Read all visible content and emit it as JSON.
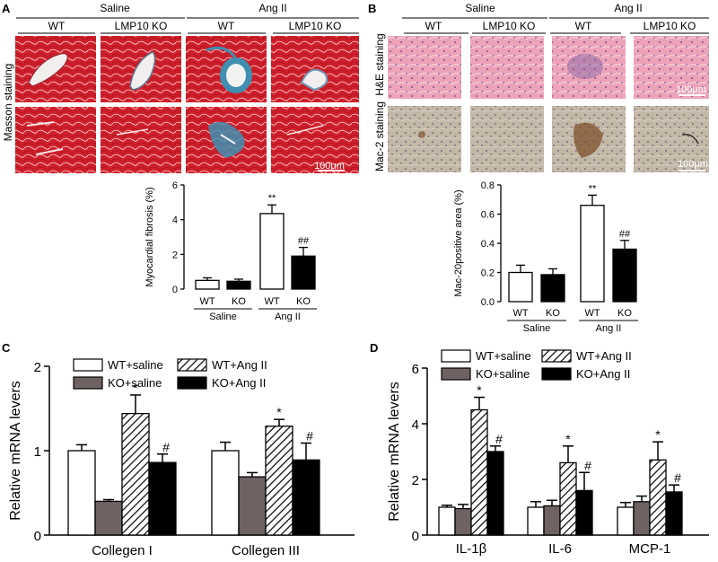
{
  "panel_labels": [
    "A",
    "B",
    "C",
    "D"
  ],
  "colors": {
    "masson_bg": "#cf1f2a",
    "masson_fiber": "#3f8fb0",
    "he_bg": "#eda2b8",
    "he_nuclei": "#5a3f8a",
    "mac2_bg": "#c3b7a6",
    "mac2_stain": "#7a4a23",
    "bar_ko_saline": "#6e6262"
  },
  "panelA": {
    "group_headers": [
      "Saline",
      "Ang II"
    ],
    "col_headers": [
      "WT",
      "LMP10 KO",
      "WT",
      "LMP10 KO"
    ],
    "row_label": "Masson staining",
    "scale_bar": "100μm"
  },
  "panelB": {
    "group_headers": [
      "Saline",
      "Ang II"
    ],
    "col_headers": [
      "WT",
      "LMP10 KO",
      "WT",
      "LMP10 KO"
    ],
    "row_labels": [
      "H&E staining",
      "Mac-2 staining"
    ],
    "scale_bars": [
      "100μm",
      "100μm"
    ]
  },
  "chart_data": [
    {
      "panel": "A",
      "type": "bar",
      "ylabel": "Myocardial fibrosis (%)",
      "ylim": [
        0,
        6
      ],
      "yticks": [
        0,
        2,
        4,
        6
      ],
      "categories": [
        "WT",
        "KO",
        "WT",
        "KO"
      ],
      "groups": [
        "Saline",
        "Ang II"
      ],
      "values": [
        0.5,
        0.45,
        4.35,
        1.9
      ],
      "errors": [
        0.15,
        0.12,
        0.5,
        0.5
      ],
      "fills": [
        "white",
        "black",
        "white",
        "black"
      ],
      "annotations": [
        "",
        "",
        "**",
        "##"
      ]
    },
    {
      "panel": "B",
      "type": "bar",
      "ylabel": "Mac-20positive area (%)",
      "ylim": [
        0,
        0.8
      ],
      "yticks": [
        "0.0",
        "0.2",
        "0.4",
        "0.6",
        "0.8"
      ],
      "categories": [
        "WT",
        "KO",
        "WT",
        "KO"
      ],
      "groups": [
        "Saline",
        "Ang II"
      ],
      "values": [
        0.2,
        0.185,
        0.66,
        0.36
      ],
      "errors": [
        0.05,
        0.04,
        0.07,
        0.06
      ],
      "fills": [
        "white",
        "black",
        "white",
        "black"
      ],
      "annotations": [
        "",
        "",
        "**",
        "##"
      ]
    },
    {
      "panel": "C",
      "type": "bar",
      "ylabel": "Relative mRNA levers",
      "ylim": [
        0,
        2
      ],
      "yticks": [
        0,
        1,
        2
      ],
      "categories": [
        "Collegen I",
        "Collegen III"
      ],
      "series": [
        {
          "name": "WT+saline",
          "values": [
            1.0,
            1.0
          ],
          "errors": [
            0.07,
            0.1
          ]
        },
        {
          "name": "KO+saline",
          "values": [
            0.4,
            0.69
          ],
          "errors": [
            0.02,
            0.05
          ]
        },
        {
          "name": "WT+Ang II",
          "values": [
            1.44,
            1.29
          ],
          "errors": [
            0.22,
            0.08
          ]
        },
        {
          "name": "KO+Ang II",
          "values": [
            0.86,
            0.89
          ],
          "errors": [
            0.1,
            0.2
          ]
        }
      ],
      "annotations": [
        [
          "",
          "",
          "*",
          "#"
        ],
        [
          "",
          "",
          "*",
          "#"
        ]
      ]
    },
    {
      "panel": "D",
      "type": "bar",
      "ylabel": "Relative mRNA levers",
      "ylim": [
        0,
        6
      ],
      "yticks": [
        0,
        2,
        4,
        6
      ],
      "categories": [
        "IL-1β",
        "IL-6",
        "MCP-1"
      ],
      "series": [
        {
          "name": "WT+saline",
          "values": [
            1.0,
            1.0,
            1.0
          ],
          "errors": [
            0.07,
            0.2,
            0.17
          ]
        },
        {
          "name": "KO+saline",
          "values": [
            0.95,
            1.05,
            1.2
          ],
          "errors": [
            0.15,
            0.2,
            0.2
          ]
        },
        {
          "name": "WT+Ang II",
          "values": [
            4.5,
            2.6,
            2.7
          ],
          "errors": [
            0.45,
            0.6,
            0.65
          ]
        },
        {
          "name": "KO+Ang II",
          "values": [
            3.0,
            1.6,
            1.55
          ],
          "errors": [
            0.2,
            0.65,
            0.25
          ]
        }
      ],
      "annotations": [
        [
          "",
          "",
          "*",
          "#"
        ],
        [
          "",
          "",
          "*",
          "#"
        ],
        [
          "",
          "",
          "*",
          "#"
        ]
      ]
    }
  ]
}
